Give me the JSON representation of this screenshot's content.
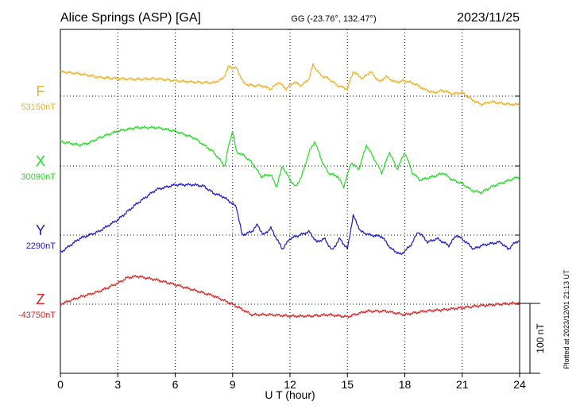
{
  "header": {
    "station": "Alice Springs (ASP)  [GA]",
    "coords": "GG (-23.76°, 132.47°)",
    "date": "2023/11/25"
  },
  "footer": {
    "plotted": "Plotted at 2023/12/01 21:13 UT"
  },
  "chart_data": {
    "type": "line",
    "xlabel": "U T (hour)",
    "xlim": [
      0,
      24
    ],
    "xticks": [
      "0",
      "3",
      "6",
      "9",
      "12",
      "15",
      "18",
      "21",
      "24"
    ],
    "scale_bar": "100 nT",
    "grid": true,
    "series": [
      {
        "name": "F",
        "baseline_label": "53150nT",
        "color": "#f0b020",
        "baseline": 53150,
        "points": [
          [
            0,
            53185
          ],
          [
            1,
            53182
          ],
          [
            2,
            53177
          ],
          [
            3,
            53175
          ],
          [
            4,
            53174
          ],
          [
            5,
            53175
          ],
          [
            6,
            53172
          ],
          [
            7,
            53170
          ],
          [
            8,
            53169
          ],
          [
            8.5,
            53175
          ],
          [
            8.8,
            53192
          ],
          [
            9.2,
            53190
          ],
          [
            9.6,
            53168
          ],
          [
            10,
            53165
          ],
          [
            10.5,
            53165
          ],
          [
            11,
            53160
          ],
          [
            11.4,
            53170
          ],
          [
            11.8,
            53160
          ],
          [
            12.2,
            53170
          ],
          [
            12.6,
            53165
          ],
          [
            13,
            53175
          ],
          [
            13.2,
            53195
          ],
          [
            13.6,
            53180
          ],
          [
            14,
            53175
          ],
          [
            14.5,
            53165
          ],
          [
            15,
            53160
          ],
          [
            15.3,
            53185
          ],
          [
            15.8,
            53175
          ],
          [
            16.2,
            53185
          ],
          [
            16.7,
            53170
          ],
          [
            17,
            53178
          ],
          [
            17.5,
            53170
          ],
          [
            18,
            53172
          ],
          [
            18.5,
            53168
          ],
          [
            19,
            53160
          ],
          [
            19.5,
            53155
          ],
          [
            20,
            53158
          ],
          [
            20.5,
            53153
          ],
          [
            21,
            53155
          ],
          [
            21.5,
            53145
          ],
          [
            22,
            53138
          ],
          [
            22.5,
            53142
          ],
          [
            23,
            53140
          ],
          [
            23.5,
            53138
          ],
          [
            24,
            53138
          ]
        ]
      },
      {
        "name": "X",
        "baseline_label": "30090nT",
        "color": "#22dd22",
        "baseline": 30090,
        "points": [
          [
            0,
            30125
          ],
          [
            1,
            30120
          ],
          [
            1.5,
            30123
          ],
          [
            2,
            30130
          ],
          [
            3,
            30140
          ],
          [
            4,
            30145
          ],
          [
            5,
            30145
          ],
          [
            6,
            30140
          ],
          [
            6.5,
            30135
          ],
          [
            7,
            30130
          ],
          [
            7.5,
            30120
          ],
          [
            8,
            30110
          ],
          [
            8.3,
            30100
          ],
          [
            8.6,
            30090
          ],
          [
            8.8,
            30120
          ],
          [
            9.0,
            30140
          ],
          [
            9.2,
            30110
          ],
          [
            9.6,
            30105
          ],
          [
            10,
            30095
          ],
          [
            10.5,
            30075
          ],
          [
            11,
            30078
          ],
          [
            11.3,
            30060
          ],
          [
            11.6,
            30090
          ],
          [
            12,
            30070
          ],
          [
            12.3,
            30060
          ],
          [
            12.6,
            30075
          ],
          [
            13,
            30110
          ],
          [
            13.3,
            30125
          ],
          [
            13.7,
            30095
          ],
          [
            14,
            30080
          ],
          [
            14.5,
            30075
          ],
          [
            14.8,
            30060
          ],
          [
            15.2,
            30095
          ],
          [
            15.6,
            30085
          ],
          [
            16,
            30120
          ],
          [
            16.4,
            30100
          ],
          [
            16.8,
            30080
          ],
          [
            17.2,
            30110
          ],
          [
            17.6,
            30085
          ],
          [
            18,
            30110
          ],
          [
            18.4,
            30080
          ],
          [
            18.8,
            30070
          ],
          [
            19.5,
            30075
          ],
          [
            20,
            30080
          ],
          [
            20.5,
            30070
          ],
          [
            21,
            30065
          ],
          [
            21.5,
            30055
          ],
          [
            22,
            30052
          ],
          [
            22.5,
            30060
          ],
          [
            23,
            30065
          ],
          [
            23.5,
            30070
          ],
          [
            24,
            30075
          ]
        ]
      },
      {
        "name": "Y",
        "baseline_label": "2290nT",
        "color": "#1a1acc",
        "baseline": 2290,
        "points": [
          [
            0,
            2265
          ],
          [
            0.5,
            2275
          ],
          [
            1,
            2285
          ],
          [
            2,
            2295
          ],
          [
            3,
            2312
          ],
          [
            4,
            2335
          ],
          [
            5,
            2355
          ],
          [
            6,
            2362
          ],
          [
            7,
            2362
          ],
          [
            7.5,
            2360
          ],
          [
            8,
            2350
          ],
          [
            8.5,
            2345
          ],
          [
            9,
            2335
          ],
          [
            9.2,
            2330
          ],
          [
            9.5,
            2290
          ],
          [
            10,
            2295
          ],
          [
            10.3,
            2305
          ],
          [
            10.6,
            2290
          ],
          [
            11,
            2300
          ],
          [
            11.3,
            2285
          ],
          [
            11.6,
            2270
          ],
          [
            12,
            2285
          ],
          [
            12.5,
            2290
          ],
          [
            13,
            2295
          ],
          [
            13.4,
            2280
          ],
          [
            13.8,
            2285
          ],
          [
            14.2,
            2268
          ],
          [
            14.6,
            2285
          ],
          [
            15,
            2270
          ],
          [
            15.3,
            2318
          ],
          [
            15.7,
            2295
          ],
          [
            16.2,
            2290
          ],
          [
            16.8,
            2288
          ],
          [
            17.3,
            2270
          ],
          [
            17.8,
            2262
          ],
          [
            18.3,
            2275
          ],
          [
            18.7,
            2295
          ],
          [
            19.2,
            2280
          ],
          [
            19.7,
            2285
          ],
          [
            20.3,
            2275
          ],
          [
            20.7,
            2290
          ],
          [
            21.2,
            2280
          ],
          [
            21.6,
            2270
          ],
          [
            22,
            2275
          ],
          [
            22.5,
            2278
          ],
          [
            23,
            2280
          ],
          [
            23.4,
            2270
          ],
          [
            23.8,
            2280
          ],
          [
            24,
            2282
          ]
        ]
      },
      {
        "name": "Z",
        "baseline_label": "-43750nT",
        "color": "#e02020",
        "baseline": -43750,
        "points": [
          [
            0,
            -43750
          ],
          [
            1,
            -43740
          ],
          [
            2,
            -43732
          ],
          [
            3,
            -43720
          ],
          [
            3.5,
            -43712
          ],
          [
            4,
            -43710
          ],
          [
            5,
            -43715
          ],
          [
            6,
            -43722
          ],
          [
            7,
            -43730
          ],
          [
            8,
            -43738
          ],
          [
            9,
            -43750
          ],
          [
            10,
            -43765
          ],
          [
            11,
            -43765
          ],
          [
            12,
            -43767
          ],
          [
            13,
            -43767
          ],
          [
            14,
            -43765
          ],
          [
            15,
            -43768
          ],
          [
            16,
            -43760
          ],
          [
            17,
            -43760
          ],
          [
            18,
            -43765
          ],
          [
            19,
            -43760
          ],
          [
            20,
            -43758
          ],
          [
            21,
            -43755
          ],
          [
            22,
            -43752
          ],
          [
            23,
            -43750
          ],
          [
            24,
            -43748
          ]
        ]
      }
    ]
  }
}
